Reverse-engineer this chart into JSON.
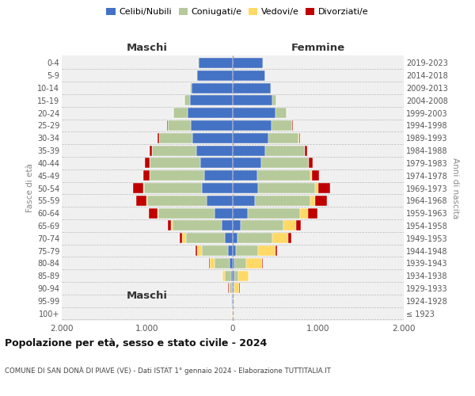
{
  "age_groups": [
    "100+",
    "95-99",
    "90-94",
    "85-89",
    "80-84",
    "75-79",
    "70-74",
    "65-69",
    "60-64",
    "55-59",
    "50-54",
    "45-49",
    "40-44",
    "35-39",
    "30-34",
    "25-29",
    "20-24",
    "15-19",
    "10-14",
    "5-9",
    "0-4"
  ],
  "birth_years": [
    "≤ 1923",
    "1924-1928",
    "1929-1933",
    "1934-1938",
    "1939-1943",
    "1944-1948",
    "1949-1953",
    "1954-1958",
    "1959-1963",
    "1964-1968",
    "1969-1973",
    "1974-1978",
    "1979-1983",
    "1984-1988",
    "1989-1993",
    "1994-1998",
    "1999-2003",
    "2004-2008",
    "2009-2013",
    "2014-2018",
    "2019-2023"
  ],
  "maschi": {
    "celibi": [
      3,
      8,
      12,
      20,
      35,
      55,
      90,
      130,
      210,
      310,
      360,
      330,
      380,
      430,
      470,
      490,
      530,
      500,
      480,
      420,
      400
    ],
    "coniugati": [
      1,
      8,
      25,
      70,
      180,
      310,
      460,
      570,
      660,
      690,
      680,
      640,
      590,
      510,
      390,
      270,
      160,
      65,
      22,
      8,
      3
    ],
    "vedovi": [
      1,
      4,
      12,
      30,
      55,
      55,
      45,
      25,
      12,
      8,
      4,
      2,
      2,
      1,
      1,
      1,
      3,
      2,
      1,
      0,
      0
    ],
    "divorziati": [
      0,
      1,
      2,
      4,
      8,
      18,
      28,
      38,
      100,
      120,
      120,
      75,
      55,
      35,
      18,
      8,
      4,
      2,
      1,
      0,
      0
    ]
  },
  "femmine": {
    "nubili": [
      3,
      4,
      8,
      15,
      22,
      38,
      60,
      90,
      175,
      255,
      300,
      290,
      330,
      375,
      415,
      450,
      500,
      460,
      440,
      375,
      355
    ],
    "coniugate": [
      1,
      6,
      15,
      50,
      140,
      260,
      400,
      500,
      610,
      655,
      665,
      615,
      555,
      465,
      355,
      245,
      125,
      50,
      16,
      6,
      3
    ],
    "vedove": [
      2,
      12,
      55,
      120,
      185,
      205,
      185,
      150,
      90,
      55,
      35,
      18,
      8,
      6,
      5,
      4,
      4,
      2,
      1,
      1,
      0
    ],
    "divorziate": [
      0,
      1,
      2,
      4,
      8,
      18,
      38,
      55,
      120,
      140,
      140,
      85,
      45,
      28,
      12,
      6,
      2,
      1,
      1,
      0,
      0
    ]
  },
  "colors": {
    "celibi_nubili": "#4472c4",
    "coniugati": "#b5c99a",
    "vedovi": "#ffd966",
    "divorziati": "#c00000"
  },
  "xlim": 2000,
  "title": "Popolazione per età, sesso e stato civile - 2024",
  "subtitle": "COMUNE DI SAN DONÀ DI PIAVE (VE) - Dati ISTAT 1° gennaio 2024 - Elaborazione TUTTITALIA.IT",
  "ylabel_left": "Fasce di età",
  "ylabel_right": "Anni di nascita",
  "xlabel_left": "Maschi",
  "xlabel_right": "Femmine",
  "bg_color": "#ffffff",
  "plot_bg": "#f0f0f0"
}
